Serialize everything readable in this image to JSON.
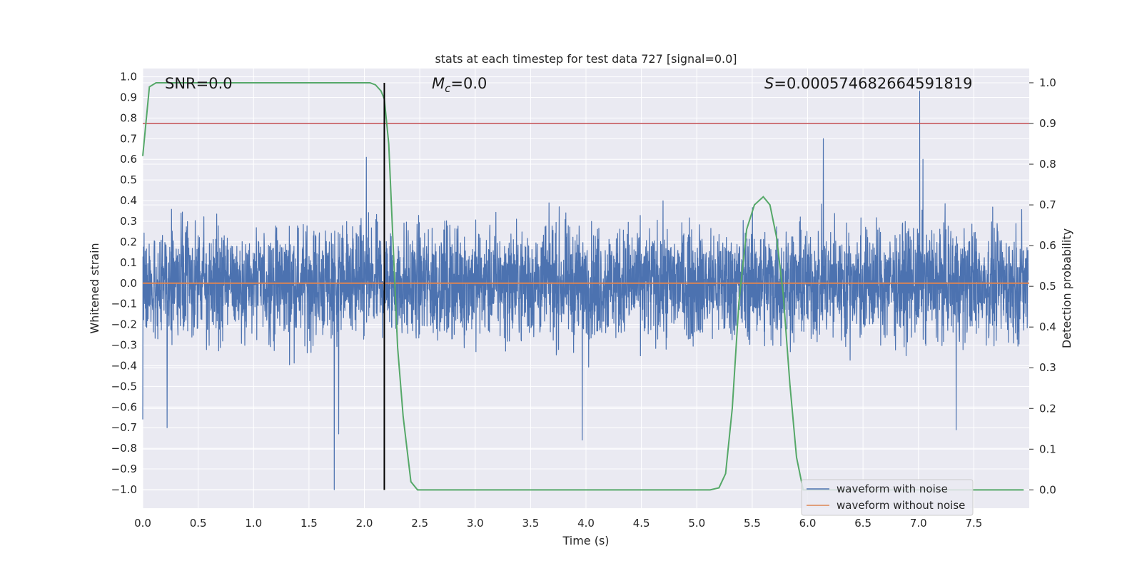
{
  "chart_data": {
    "type": "line",
    "title": "stats at each timestep for test data 727 [signal=0.0]",
    "xlabel": "Time (s)",
    "ylabel": "Whitened strain",
    "y2label": "Detection probability",
    "xlim": [
      0.0,
      8.0
    ],
    "ylim": [
      -1.09,
      1.04
    ],
    "y2lim": [
      -0.045,
      1.035
    ],
    "xticks": [
      "0.0",
      "0.5",
      "1.0",
      "1.5",
      "2.0",
      "2.5",
      "3.0",
      "3.5",
      "4.0",
      "4.5",
      "5.0",
      "5.5",
      "6.0",
      "6.5",
      "7.0",
      "7.5"
    ],
    "yticks": [
      "1.0",
      "0.9",
      "0.8",
      "0.7",
      "0.6",
      "0.5",
      "0.4",
      "0.3",
      "0.2",
      "0.1",
      "0.0",
      "-0.1",
      "-0.2",
      "-0.3",
      "-0.4",
      "-0.5",
      "-0.6",
      "-0.7",
      "-0.8",
      "-0.9",
      "-1.0"
    ],
    "y2ticks": [
      "1.0",
      "0.9",
      "0.8",
      "0.7",
      "0.6",
      "0.5",
      "0.4",
      "0.3",
      "0.2",
      "0.1",
      "0.0"
    ],
    "annotations": {
      "snr": "SNR=0.0",
      "mc_symbol": "M",
      "mc_sub": "c",
      "mc_value": "=0.0",
      "s_symbol": "S",
      "s_value": "=0.000574682664591819"
    },
    "marker_line_time": 2.18,
    "threshold_probability": 0.9,
    "noise_amplitude_estimate": 0.35,
    "noise_peaks": [
      {
        "x": 7.02,
        "y": 0.93
      },
      {
        "x": 6.15,
        "y": 0.7
      },
      {
        "x": 1.73,
        "y": -1.0
      },
      {
        "x": 1.77,
        "y": -0.73
      },
      {
        "x": 3.97,
        "y": -0.76
      },
      {
        "x": 0.22,
        "y": -0.7
      },
      {
        "x": 0.0,
        "y": -0.66
      },
      {
        "x": 7.05,
        "y": 0.6
      },
      {
        "x": 2.02,
        "y": 0.61
      },
      {
        "x": 7.35,
        "y": -0.71
      }
    ],
    "series": [
      {
        "name": "waveform with noise",
        "color": "#4c72b0",
        "axis": "left",
        "kind": "noise"
      },
      {
        "name": "waveform without noise",
        "color": "#dd8452",
        "axis": "left",
        "x": [
          0.0,
          8.0
        ],
        "y": [
          0.0,
          0.0
        ]
      },
      {
        "name": "detection probability",
        "color": "#55a868",
        "axis": "right",
        "x": [
          0.0,
          0.06,
          0.12,
          0.2,
          0.5,
          1.0,
          1.5,
          2.0,
          2.05,
          2.1,
          2.15,
          2.18,
          2.22,
          2.26,
          2.3,
          2.35,
          2.42,
          2.48,
          3.0,
          4.0,
          5.0,
          5.12,
          5.2,
          5.26,
          5.32,
          5.38,
          5.45,
          5.52,
          5.6,
          5.66,
          5.72,
          5.78,
          5.84,
          5.9,
          5.96,
          6.0,
          6.06,
          6.12,
          6.3,
          7.0,
          7.5,
          7.95
        ],
        "y": [
          0.82,
          0.99,
          1.0,
          1.0,
          1.0,
          1.0,
          1.0,
          1.0,
          1.0,
          0.995,
          0.98,
          0.96,
          0.85,
          0.6,
          0.35,
          0.18,
          0.02,
          0.0,
          0.0,
          0.0,
          0.0,
          0.0,
          0.005,
          0.04,
          0.2,
          0.46,
          0.64,
          0.7,
          0.72,
          0.7,
          0.62,
          0.48,
          0.26,
          0.08,
          0.0,
          0.0,
          0.0,
          0.0,
          0.0,
          0.0,
          0.0,
          0.0
        ]
      }
    ],
    "legend": {
      "placement": "lower-right",
      "entries": [
        {
          "label": "waveform with noise",
          "color": "#4c72b0"
        },
        {
          "label": "waveform without noise",
          "color": "#dd8452"
        }
      ]
    },
    "colors": {
      "background": "#eaeaf2",
      "grid": "#ffffff",
      "threshold": "#c44e52",
      "marker": "#000000"
    }
  }
}
